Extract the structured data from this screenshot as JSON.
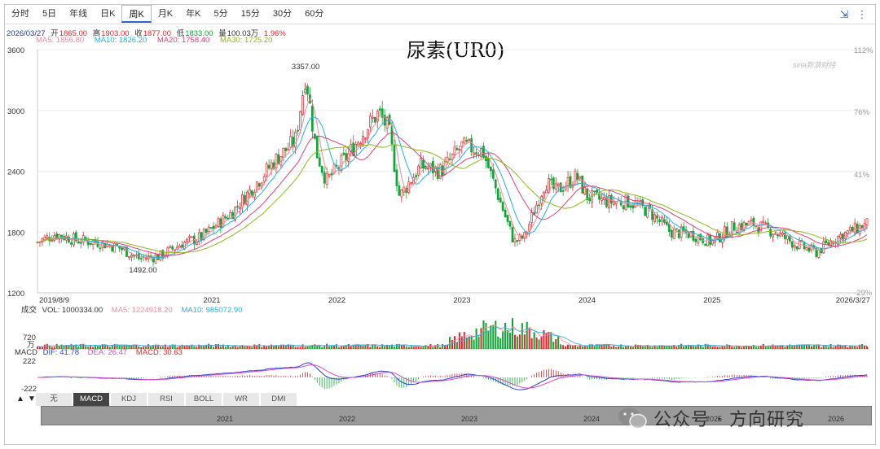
{
  "tabs": [
    "分时",
    "5日",
    "年线",
    "日K",
    "周K",
    "月K",
    "年K",
    "5分",
    "15分",
    "30分",
    "60分"
  ],
  "active_tab": 4,
  "info_line": {
    "date": "2026/03/27",
    "open_label": "开",
    "open": "1865.00",
    "high_label": "高",
    "high": "1903.00",
    "close_label": "收",
    "close": "1877.00",
    "low_label": "低",
    "low": "1833.00",
    "vol_label": "量",
    "vol": "100.03万",
    "change": "1.96%"
  },
  "ma_line": {
    "ma5": "MA5: 1856.80",
    "ma10": "MA10: 1826.20",
    "ma20": "MA20: 1758.40",
    "ma30": "MA30: 1725.20"
  },
  "vol_line": {
    "label": "成交",
    "vol": "VOL: 1000334.00",
    "ma5": "MA5: 1224918.20",
    "ma10": "MA10: 985072.90"
  },
  "macd_line": {
    "label": "MACD",
    "dif": "DIF: 41.78",
    "dea": "DEA: 26.47",
    "macd": "MACD: 30.63"
  },
  "indicator_tabs": [
    "无",
    "MACD",
    "KDJ",
    "RSI",
    "BOLL",
    "WR",
    "DMI"
  ],
  "active_indicator": 1,
  "nav_years": [
    "2021",
    "2022",
    "2023",
    "2024",
    "2025",
    "2026"
  ],
  "watermark": "公众号 · 方向研究",
  "sina_logo": "sina新浪财经",
  "colors": {
    "up": "#e8262d",
    "down": "#13a538",
    "ma5": "#f08aa0",
    "ma10": "#27b0e0",
    "ma20": "#e0407a",
    "ma30": "#8fb81d",
    "dif": "#2b3fd8",
    "dea": "#d94cc9"
  },
  "chart_data": {
    "type": "candlestick",
    "title": "尿素(UR0)",
    "y_ticks": [
      "3600",
      "3000",
      "2400",
      "1800",
      "1200"
    ],
    "ylim": [
      1200,
      3600
    ],
    "right_ticks": [
      "112%",
      "76%",
      "41%",
      "-29%"
    ],
    "x_start": "2019/8/9",
    "x_end": "2026/3/27",
    "x_labels": [
      "2021",
      "2022",
      "2023",
      "2024",
      "2025"
    ],
    "high_marker": "3357.00",
    "low_marker": "1492.00",
    "close_trend": [
      [
        "2019/8/9",
        1700
      ],
      [
        "2019/10",
        1780
      ],
      [
        "2019/12",
        1720
      ],
      [
        "2020/2",
        1700
      ],
      [
        "2020/4",
        1650
      ],
      [
        "2020/6",
        1540
      ],
      [
        "2020/8",
        1560
      ],
      [
        "2020/10",
        1680
      ],
      [
        "2020/12",
        1750
      ],
      [
        "2021/3",
        2000
      ],
      [
        "2021/5",
        2250
      ],
      [
        "2021/7",
        2500
      ],
      [
        "2021/9",
        2700
      ],
      [
        "2021/10",
        3357
      ],
      [
        "2021/11",
        2600
      ],
      [
        "2021/12",
        2300
      ],
      [
        "2022/2",
        2550
      ],
      [
        "2022/4",
        2850
      ],
      [
        "2022/5",
        2980
      ],
      [
        "2022/6",
        2800
      ],
      [
        "2022/7",
        2150
      ],
      [
        "2022/9",
        2450
      ],
      [
        "2022/11",
        2400
      ],
      [
        "2023/1",
        2650
      ],
      [
        "2023/3",
        2600
      ],
      [
        "2023/4",
        2300
      ],
      [
        "2023/6",
        1700
      ],
      [
        "2023/7",
        1750
      ],
      [
        "2023/9",
        2300
      ],
      [
        "2023/10",
        2200
      ],
      [
        "2023/12",
        2350
      ],
      [
        "2024/1",
        2150
      ],
      [
        "2024/3",
        2100
      ],
      [
        "2024/5",
        2100
      ],
      [
        "2024/7",
        2000
      ],
      [
        "2024/9",
        1800
      ],
      [
        "2024/11",
        1780
      ],
      [
        "2025/1",
        1700
      ],
      [
        "2025/3",
        1850
      ],
      [
        "2025/5",
        1880
      ],
      [
        "2025/7",
        1800
      ],
      [
        "2025/9",
        1680
      ],
      [
        "2025/11",
        1600
      ],
      [
        "2026/1",
        1750
      ],
      [
        "2026/3/27",
        1877
      ]
    ],
    "volume_axis": [
      "720",
      "万"
    ],
    "macd_axis": [
      "222",
      "-222"
    ]
  }
}
